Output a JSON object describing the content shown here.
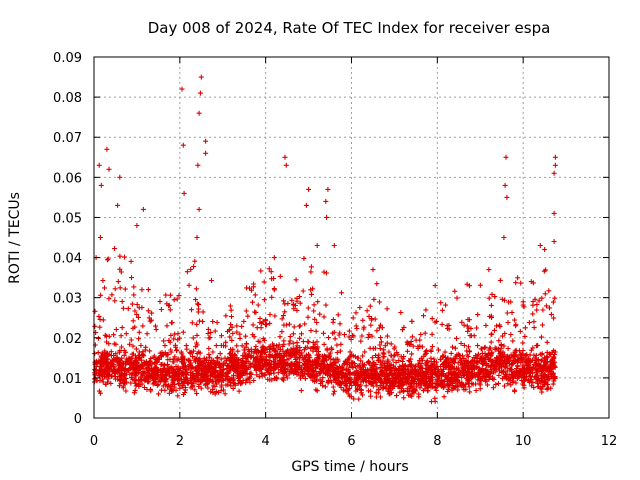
{
  "chart_data": {
    "type": "scatter",
    "title": "Day 008 of 2024, Rate Of TEC Index for receiver espa",
    "xlabel": "GPS time / hours",
    "ylabel": "ROTI / TECUs",
    "xlim": [
      0,
      12
    ],
    "ylim": [
      0,
      0.09
    ],
    "xticks": [
      "0",
      "2",
      "4",
      "6",
      "8",
      "10",
      "12"
    ],
    "yticks": [
      "0",
      "0.01",
      "0.02",
      "0.03",
      "0.04",
      "0.05",
      "0.06",
      "0.07",
      "0.08",
      "0.09"
    ],
    "grid": true,
    "marker": "+",
    "color": "#e00000",
    "data_extent_hours": [
      0,
      10.75
    ],
    "baseline_band": [
      0.005,
      0.02
    ],
    "notable_points": [
      [
        0.12,
        0.063
      ],
      [
        0.17,
        0.058
      ],
      [
        0.3,
        0.067
      ],
      [
        0.35,
        0.062
      ],
      [
        0.6,
        0.06
      ],
      [
        0.55,
        0.053
      ],
      [
        1.15,
        0.052
      ],
      [
        2.05,
        0.082
      ],
      [
        2.08,
        0.068
      ],
      [
        2.1,
        0.056
      ],
      [
        2.5,
        0.085
      ],
      [
        2.48,
        0.081
      ],
      [
        2.45,
        0.076
      ],
      [
        2.6,
        0.069
      ],
      [
        2.6,
        0.066
      ],
      [
        2.42,
        0.063
      ],
      [
        2.45,
        0.052
      ],
      [
        4.45,
        0.065
      ],
      [
        4.48,
        0.063
      ],
      [
        5.0,
        0.057
      ],
      [
        4.95,
        0.053
      ],
      [
        5.45,
        0.057
      ],
      [
        5.4,
        0.054
      ],
      [
        5.42,
        0.05
      ],
      [
        9.6,
        0.065
      ],
      [
        9.58,
        0.058
      ],
      [
        9.62,
        0.055
      ],
      [
        10.75,
        0.065
      ],
      [
        10.75,
        0.063
      ],
      [
        10.72,
        0.061
      ],
      [
        10.72,
        0.051
      ],
      [
        10.72,
        0.044
      ],
      [
        10.4,
        0.043
      ],
      [
        10.5,
        0.042
      ],
      [
        9.55,
        0.045
      ],
      [
        1.0,
        0.048
      ],
      [
        0.05,
        0.04
      ],
      [
        0.15,
        0.045
      ],
      [
        2.4,
        0.045
      ],
      [
        4.2,
        0.04
      ],
      [
        5.2,
        0.043
      ],
      [
        5.6,
        0.043
      ],
      [
        6.5,
        0.037
      ],
      [
        7.95,
        0.033
      ],
      [
        9.2,
        0.037
      ]
    ],
    "density_profile": [
      [
        0.0,
        0.012,
        0.028
      ],
      [
        0.5,
        0.013,
        0.035
      ],
      [
        1.0,
        0.012,
        0.03
      ],
      [
        1.5,
        0.011,
        0.022
      ],
      [
        2.0,
        0.011,
        0.025
      ],
      [
        2.5,
        0.012,
        0.035
      ],
      [
        3.0,
        0.011,
        0.022
      ],
      [
        3.5,
        0.013,
        0.028
      ],
      [
        4.0,
        0.014,
        0.03
      ],
      [
        4.5,
        0.014,
        0.03
      ],
      [
        5.0,
        0.013,
        0.033
      ],
      [
        5.5,
        0.012,
        0.028
      ],
      [
        6.0,
        0.01,
        0.022
      ],
      [
        6.5,
        0.011,
        0.027
      ],
      [
        7.0,
        0.01,
        0.02
      ],
      [
        7.5,
        0.01,
        0.02
      ],
      [
        8.0,
        0.011,
        0.025
      ],
      [
        8.5,
        0.011,
        0.025
      ],
      [
        9.0,
        0.012,
        0.028
      ],
      [
        9.5,
        0.014,
        0.03
      ],
      [
        10.0,
        0.012,
        0.03
      ],
      [
        10.5,
        0.012,
        0.03
      ],
      [
        10.75,
        0.012,
        0.03
      ]
    ],
    "bulk_point_count": 3600
  }
}
